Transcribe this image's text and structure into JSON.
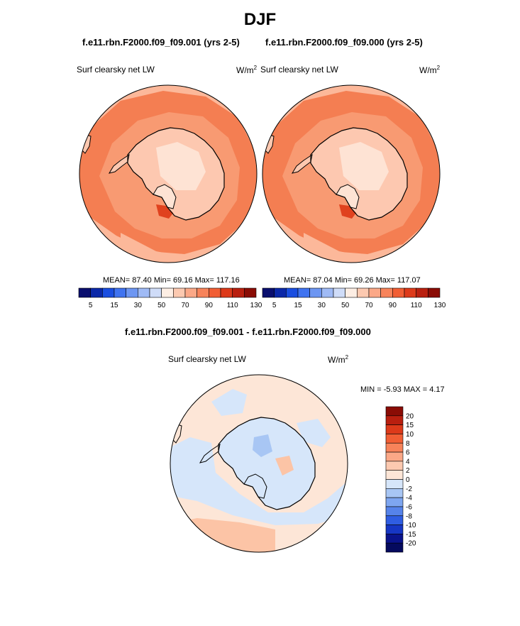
{
  "title": "DJF",
  "panels": [
    {
      "case": "f.e11.rbn.F2000.f09_f09.001 (yrs 2-5)",
      "variable": "Surf clearsky net LW",
      "units_base": "W/m",
      "units_exp": "2",
      "stats": "MEAN=  87.40  Min=  69.16  Max= 117.16"
    },
    {
      "case": "f.e11.rbn.F2000.f09_f09.000 (yrs 2-5)",
      "variable": "Surf clearsky net LW",
      "units_base": "W/m",
      "units_exp": "2",
      "stats": "MEAN=  87.04  Min=  69.26  Max= 117.07"
    }
  ],
  "diff": {
    "title": "f.e11.rbn.F2000.f09_f09.001 - f.e11.rbn.F2000.f09_f09.000",
    "variable": "Surf clearsky net LW",
    "units_base": "W/m",
    "units_exp": "2",
    "stats": "MIN =  -5.93 MAX =   4.17"
  },
  "colors": {
    "coast": "#000000",
    "abs_land_main": "#fdc8b0",
    "abs_land_light": "#fee3d4",
    "abs_ocean_inner": "#f89a72",
    "abs_ocean_mid": "#f47e52",
    "abs_ocean_outer": "#fcb89a",
    "abs_hot": "#e0421e",
    "diff_bg": "#fde6d7",
    "diff_neg": "#d6e6fa",
    "diff_neg2": "#a8c6f4",
    "diff_pos2": "#fcc4a6"
  },
  "chart_data": [
    {
      "type": "heatmap",
      "projection": "south-polar-stereographic",
      "title": "f.e11.rbn.F2000.f09_f09.001 (yrs 2-5)",
      "variable": "Surf clearsky net LW",
      "units": "W/m2",
      "mean": 87.4,
      "min": 69.16,
      "max": 117.16,
      "colorbar": {
        "orientation": "horizontal",
        "tick_labels": [
          "5",
          "15",
          "30",
          "50",
          "70",
          "90",
          "110",
          "130"
        ],
        "colors": [
          "#0a0f6e",
          "#0b28a8",
          "#1a4ee0",
          "#3f73f0",
          "#6d96f2",
          "#9fbaf5",
          "#cfdcf8",
          "#fdeee4",
          "#fcc9b0",
          "#fba887",
          "#f7835a",
          "#f15e34",
          "#dd3a1a",
          "#b91f0f",
          "#8a0c05"
        ]
      }
    },
    {
      "type": "heatmap",
      "projection": "south-polar-stereographic",
      "title": "f.e11.rbn.F2000.f09_f09.000 (yrs 2-5)",
      "variable": "Surf clearsky net LW",
      "units": "W/m2",
      "mean": 87.04,
      "min": 69.26,
      "max": 117.07,
      "colorbar": {
        "orientation": "horizontal",
        "tick_labels": [
          "5",
          "15",
          "30",
          "50",
          "70",
          "90",
          "110",
          "130"
        ],
        "colors": [
          "#0a0f6e",
          "#0b28a8",
          "#1a4ee0",
          "#3f73f0",
          "#6d96f2",
          "#9fbaf5",
          "#cfdcf8",
          "#fdeee4",
          "#fcc9b0",
          "#fba887",
          "#f7835a",
          "#f15e34",
          "#dd3a1a",
          "#b91f0f",
          "#8a0c05"
        ]
      }
    },
    {
      "type": "heatmap",
      "projection": "south-polar-stereographic",
      "title": "f.e11.rbn.F2000.f09_f09.001 - f.e11.rbn.F2000.f09_f09.000",
      "variable": "Surf clearsky net LW",
      "units": "W/m2",
      "min": -5.93,
      "max": 4.17,
      "colorbar": {
        "orientation": "vertical",
        "tick_labels": [
          "20",
          "15",
          "10",
          "8",
          "6",
          "4",
          "2",
          "0",
          "-2",
          "-4",
          "-6",
          "-8",
          "-10",
          "-15",
          "-20"
        ],
        "colors": [
          "#8a0c05",
          "#b91f0f",
          "#dd3a1a",
          "#f15e34",
          "#f7835a",
          "#fba887",
          "#fcc9b0",
          "#fde6d7",
          "#d6e6fa",
          "#a8c6f4",
          "#7ea6f0",
          "#5683ea",
          "#2f5de2",
          "#1636c4",
          "#0a138c",
          "#050a5e"
        ]
      }
    }
  ]
}
